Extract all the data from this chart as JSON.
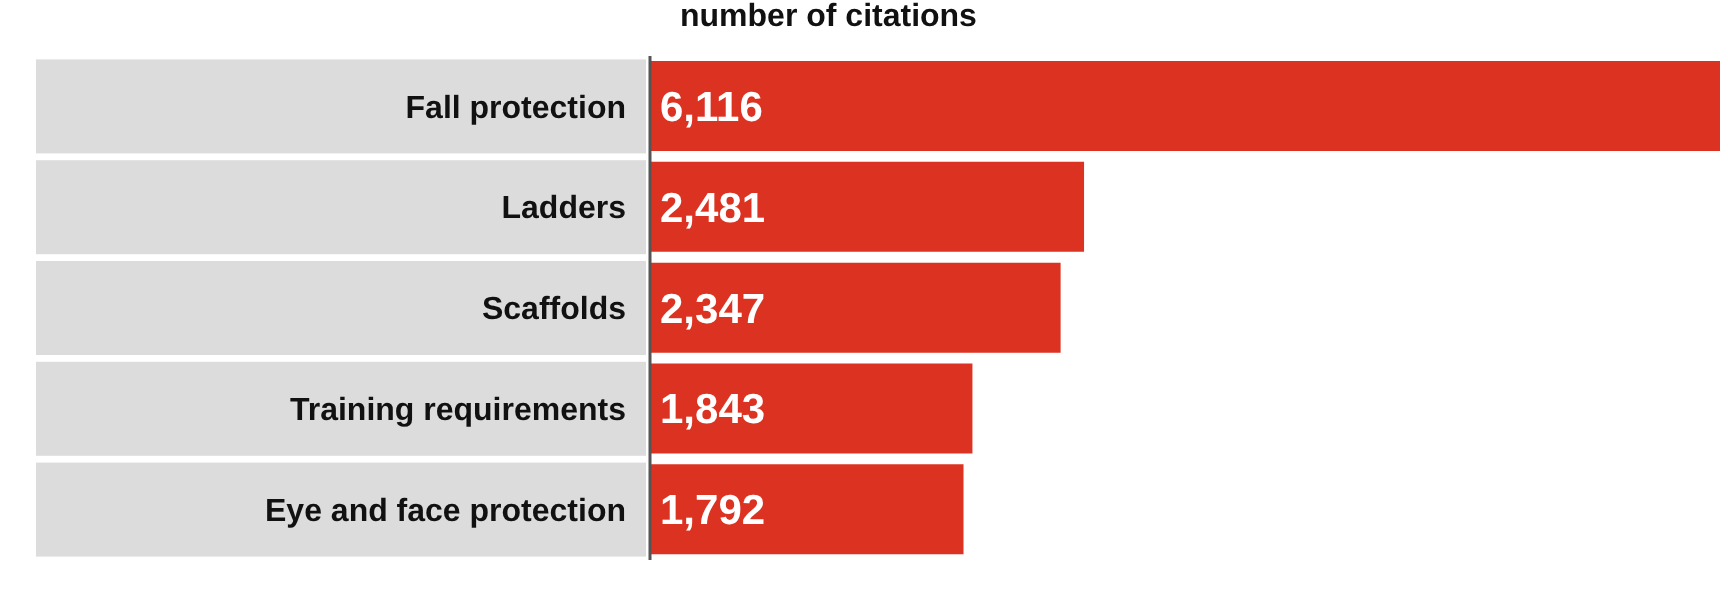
{
  "chart_data": {
    "type": "bar",
    "orientation": "horizontal",
    "title": "number of citations",
    "categories": [
      "Fall protection",
      "Ladders",
      "Scaffolds",
      "Training requirements",
      "Eye and face protection"
    ],
    "values": [
      6116,
      2481,
      2347,
      1843,
      1792
    ],
    "value_labels": [
      "6,116",
      "2,481",
      "2,347",
      "1,843",
      "1,792"
    ],
    "color": "#dc3222"
  }
}
